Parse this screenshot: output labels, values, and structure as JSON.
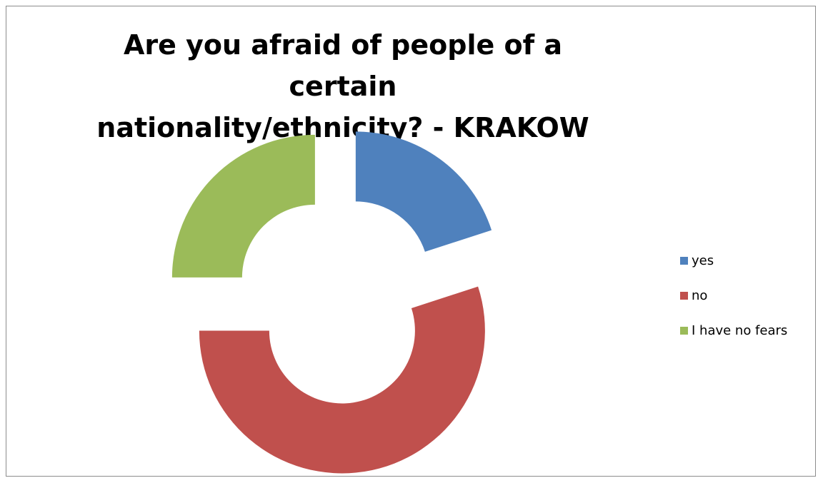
{
  "chart_data": {
    "type": "donut",
    "title": "Are you afraid of people of a certain\nnationality/ethnicity? - KRAKOW",
    "legend_position": "right",
    "exploded": true,
    "categories": [
      "yes",
      "no",
      "I have no fears"
    ],
    "values": [
      20,
      55,
      25
    ],
    "colors": [
      "#4f81bd",
      "#c0504d",
      "#9bbb59"
    ]
  }
}
